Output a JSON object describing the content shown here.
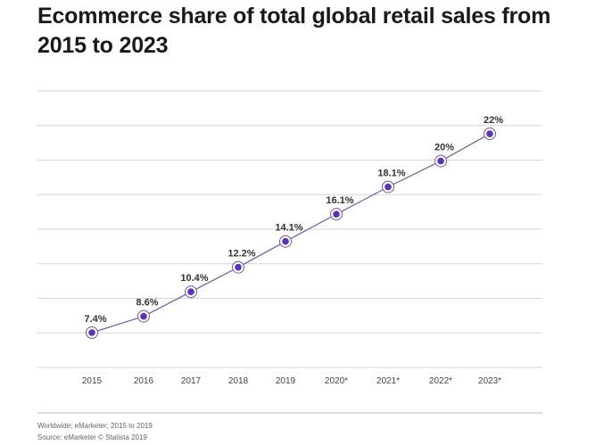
{
  "chart_data": {
    "type": "line",
    "title": "Ecommerce share of total global retail sales from 2015 to 2023",
    "categories": [
      "2015",
      "2016",
      "2017",
      "2018",
      "2019",
      "2020*",
      "2021*",
      "2022*",
      "2023*"
    ],
    "values": [
      7.4,
      8.6,
      10.4,
      12.2,
      14.1,
      16.1,
      18.1,
      20,
      22
    ],
    "data_labels": [
      "7.4%",
      "8.6%",
      "10.4%",
      "12.2%",
      "14.1%",
      "16.1%",
      "18.1%",
      "20%",
      "22%"
    ],
    "xlabel": "",
    "ylabel": "",
    "grid": true,
    "colors": {
      "line": "#6a5bb5",
      "marker": "#5b2fc9"
    }
  },
  "footer": {
    "note": "Worldwide; eMarketer; 2015 to 2019",
    "source": "Source: eMarketer © Statista 2019"
  }
}
